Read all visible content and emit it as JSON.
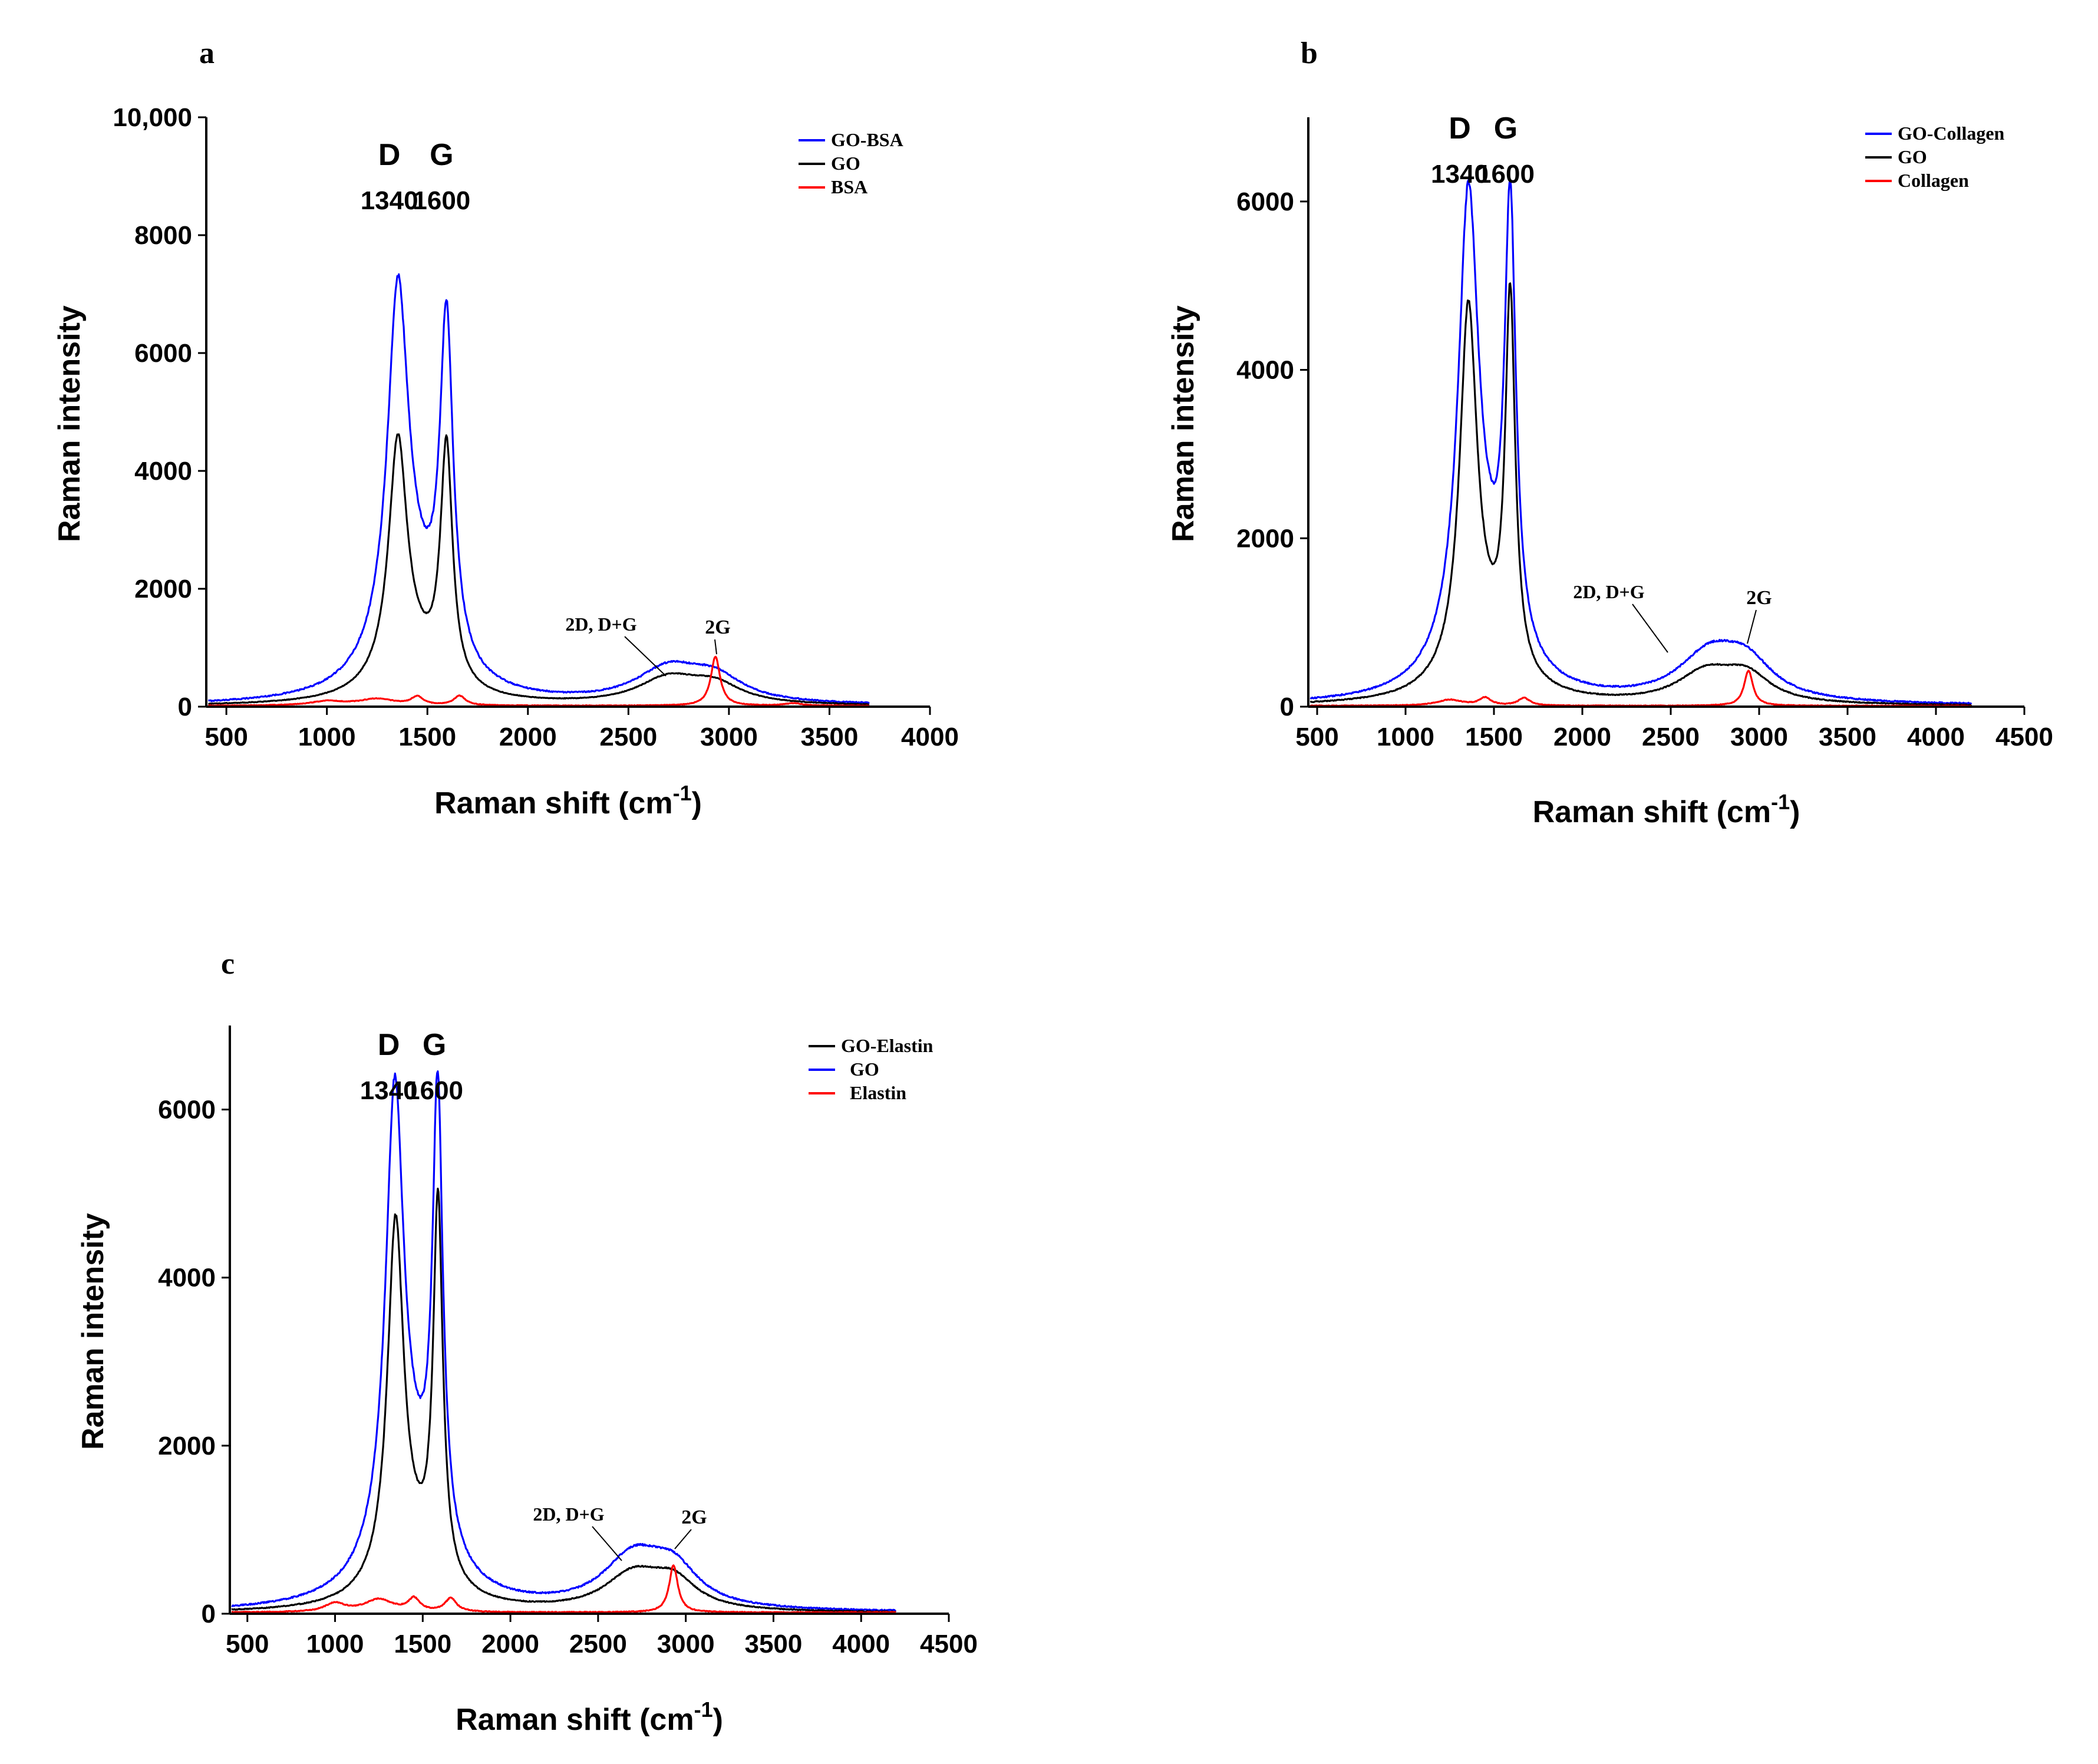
{
  "chart_data": [
    {
      "panel": "a",
      "type": "line",
      "xlabel": "Raman shift (cm",
      "xlabel_sup": "-1",
      "xlabel_close": ")",
      "ylabel": "Raman intensity",
      "xlim": [
        400,
        4000
      ],
      "ylim": [
        0,
        10000
      ],
      "xticks": [
        500,
        1000,
        1500,
        2000,
        2500,
        3000,
        3500,
        4000
      ],
      "xtick_labels": [
        "500",
        "1000",
        "1500",
        "2000",
        "2500",
        "3000",
        "3500",
        "4000"
      ],
      "yticks": [
        0,
        2000,
        4000,
        6000,
        8000,
        10000
      ],
      "ytick_labels": [
        "0",
        "2000",
        "4000",
        "6000",
        "8000",
        "10,000"
      ],
      "peak_labels": [
        {
          "letter": "D",
          "value": "1340",
          "x": 1340
        },
        {
          "letter": "G",
          "value": "1600",
          "x": 1600
        }
      ],
      "annotations": [
        {
          "text": "2D, D+G",
          "x": 2700,
          "y": 620
        },
        {
          "text": "2G",
          "x": 2940,
          "y": 700
        }
      ],
      "legend": [
        "GO-BSA",
        "GO",
        "BSA"
      ],
      "series": [
        {
          "name": "GO-BSA",
          "color": "#0000ff",
          "baseline": 10,
          "noise": 45,
          "peaks": [
            [
              1353,
              5800,
              62
            ],
            [
              1595,
              5700,
              40
            ],
            [
              1420,
              1500,
              190
            ],
            [
              2700,
              560,
              200
            ],
            [
              2930,
              380,
              170
            ]
          ]
        },
        {
          "name": "GO",
          "color": "#000000",
          "baseline": 5,
          "noise": 25,
          "peaks": [
            [
              1353,
              3900,
              55
            ],
            [
              1595,
              4000,
              36
            ],
            [
              1420,
              700,
              190
            ],
            [
              2700,
              430,
              190
            ],
            [
              2930,
              300,
              160
            ]
          ]
        },
        {
          "name": "BSA",
          "color": "#ff0000",
          "baseline": 15,
          "noise": 25,
          "peaks": [
            [
              1000,
              70,
              100
            ],
            [
              1250,
              110,
              110
            ],
            [
              1450,
              140,
              35
            ],
            [
              1660,
              160,
              35
            ],
            [
              2933,
              830,
              28
            ],
            [
              3320,
              40,
              50
            ]
          ]
        }
      ]
    },
    {
      "panel": "b",
      "type": "line",
      "xlabel": "Raman shift (cm",
      "xlabel_sup": "-1",
      "xlabel_close": ")",
      "ylabel": "Raman intensity",
      "xlim": [
        450,
        4500
      ],
      "ylim": [
        0,
        7000
      ],
      "xticks": [
        500,
        1000,
        1500,
        2000,
        2500,
        3000,
        3500,
        4000,
        4500
      ],
      "xtick_labels": [
        "500",
        "1000",
        "1500",
        "2000",
        "2500",
        "3000",
        "3500",
        "4000",
        "4500"
      ],
      "yticks": [
        0,
        2000,
        4000,
        6000
      ],
      "ytick_labels": [
        "0",
        "2000",
        "4000",
        "6000"
      ],
      "peak_labels": [
        {
          "letter": "D",
          "value": "1340",
          "x": 1340
        },
        {
          "letter": "G",
          "value": "1600",
          "x": 1600
        }
      ],
      "annotations": [
        {
          "text": "2D, D+G",
          "x": 2680,
          "y": 440
        },
        {
          "text": "2G",
          "x": 2940,
          "y": 700
        }
      ],
      "legend": [
        "GO-Collagen",
        "GO",
        "Collagen"
      ],
      "series": [
        {
          "name": "GO-Collagen",
          "color": "#0000ff",
          "baseline": 10,
          "noise": 35,
          "peaks": [
            [
              1355,
              5150,
              68
            ],
            [
              1592,
              5200,
              38
            ],
            [
              1430,
              1050,
              210
            ],
            [
              2720,
              540,
              220
            ],
            [
              2930,
              390,
              180
            ]
          ]
        },
        {
          "name": "GO",
          "color": "#000000",
          "baseline": 5,
          "noise": 25,
          "peaks": [
            [
              1355,
              4150,
              58
            ],
            [
              1592,
              4400,
              34
            ],
            [
              1430,
              650,
              200
            ],
            [
              2700,
              360,
              200
            ],
            [
              2930,
              300,
              160
            ]
          ]
        },
        {
          "name": "Collagen",
          "color": "#ff0000",
          "baseline": 10,
          "noise": 20,
          "peaks": [
            [
              1250,
              70,
              90
            ],
            [
              1450,
              90,
              40
            ],
            [
              1670,
              90,
              40
            ],
            [
              2940,
              420,
              30
            ]
          ]
        }
      ]
    },
    {
      "panel": "c",
      "type": "line",
      "xlabel": "Raman shift (cm",
      "xlabel_sup": "-1",
      "xlabel_close": ")",
      "ylabel": "Raman intensity",
      "xlim": [
        400,
        4500
      ],
      "ylim": [
        0,
        7000
      ],
      "xticks": [
        500,
        1000,
        1500,
        2000,
        2500,
        3000,
        3500,
        4000,
        4500
      ],
      "xtick_labels": [
        "500",
        "1000",
        "1500",
        "2000",
        "2500",
        "3000",
        "3500",
        "4000",
        "4500"
      ],
      "yticks": [
        0,
        2000,
        4000,
        6000
      ],
      "ytick_labels": [
        "0",
        "2000",
        "4000",
        "6000"
      ],
      "peak_labels": [
        {
          "letter": "D",
          "value": "1340",
          "x": 1340
        },
        {
          "letter": "G",
          "value": "1600",
          "x": 1600
        }
      ],
      "annotations": [
        {
          "text": "2D, D+G",
          "x": 2680,
          "y": 620
        },
        {
          "text": "2G",
          "x": 2930,
          "y": 700
        }
      ],
      "legend": [
        "GO-Elastin",
        "GO",
        "Elastin"
      ],
      "series": [
        {
          "name": "GO",
          "color": "#0000ff",
          "baseline": 10,
          "noise": 35,
          "peaks": [
            [
              1340,
              5250,
              62
            ],
            [
              1585,
              5350,
              36
            ],
            [
              1430,
              1200,
              210
            ],
            [
              2700,
              600,
              210
            ],
            [
              2930,
              420,
              170
            ]
          ]
        },
        {
          "name": "GO-Elastin",
          "color": "#000000",
          "baseline": 5,
          "noise": 25,
          "peaks": [
            [
              1345,
              4150,
              55
            ],
            [
              1587,
              4450,
              33
            ],
            [
              1430,
              600,
              200
            ],
            [
              2700,
              420,
              200
            ],
            [
              2930,
              320,
              160
            ]
          ]
        },
        {
          "name": "Elastin",
          "color": "#ff0000",
          "baseline": 15,
          "noise": 25,
          "peaks": [
            [
              1000,
              100,
              70
            ],
            [
              1250,
              150,
              100
            ],
            [
              1450,
              150,
              40
            ],
            [
              1660,
              160,
              40
            ],
            [
              2930,
              560,
              30
            ]
          ]
        }
      ]
    }
  ]
}
